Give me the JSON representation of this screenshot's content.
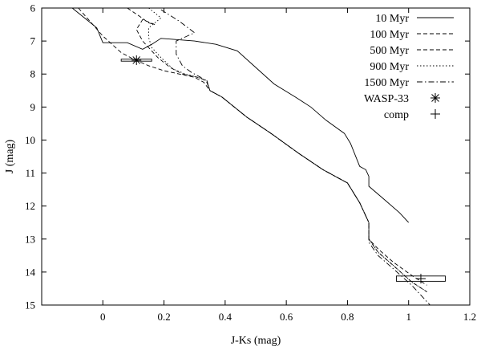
{
  "chart_data": {
    "type": "line",
    "xlabel": "J-Ks (mag)",
    "ylabel": "J (mag)",
    "xlim": [
      -0.2,
      1.2
    ],
    "ylim": [
      15,
      6
    ],
    "y_inverted": true,
    "grid": false,
    "legend_position": "top-right",
    "x_ticks": [
      "0",
      "0.2",
      "0.4",
      "0.6",
      "0.8",
      "1",
      "1.2"
    ],
    "y_ticks": [
      "6",
      "7",
      "8",
      "9",
      "10",
      "11",
      "12",
      "13",
      "14",
      "15"
    ],
    "series": [
      {
        "name": "10 Myr",
        "style": "solid",
        "x": [
          -0.1,
          -0.02,
          0.0,
          0.08,
          0.13,
          0.16,
          0.19,
          0.3,
          0.37,
          0.44,
          0.5,
          0.56,
          0.63,
          0.68,
          0.73,
          0.79,
          0.81,
          0.84,
          0.86,
          0.87,
          0.87,
          0.92,
          0.97,
          1.0
        ],
        "y": [
          6.0,
          6.6,
          7.05,
          7.05,
          7.25,
          7.1,
          6.92,
          7.0,
          7.1,
          7.3,
          7.8,
          8.3,
          8.7,
          9.0,
          9.4,
          9.8,
          10.1,
          10.8,
          10.9,
          11.1,
          11.4,
          11.8,
          12.2,
          12.5
        ]
      },
      {
        "name": "100 Myr",
        "style": "dashed",
        "x": [
          -0.08,
          0.0,
          0.06,
          0.1,
          0.15,
          0.2,
          0.25,
          0.3,
          0.33,
          0.35,
          0.39,
          0.47,
          0.55,
          0.64,
          0.72,
          0.8,
          0.84,
          0.86,
          0.87,
          0.87,
          0.9,
          0.95,
          1.01,
          1.06
        ],
        "y": [
          6.0,
          6.85,
          7.35,
          7.55,
          7.75,
          7.9,
          8.0,
          8.1,
          8.25,
          8.5,
          8.7,
          9.3,
          9.8,
          10.4,
          10.9,
          11.3,
          11.9,
          12.3,
          12.5,
          13.0,
          13.3,
          13.7,
          14.1,
          14.4
        ]
      },
      {
        "name": "500 Myr",
        "style": "dashed",
        "x": [
          0.08,
          0.12,
          0.15,
          0.17,
          0.13,
          0.11,
          0.13,
          0.18,
          0.22,
          0.26,
          0.31,
          0.34,
          0.35,
          0.39,
          0.47,
          0.55,
          0.64,
          0.72,
          0.8,
          0.84,
          0.86,
          0.87,
          0.87,
          0.9,
          0.95,
          1.01,
          1.06
        ],
        "y": [
          6.0,
          6.25,
          6.45,
          6.5,
          6.35,
          6.65,
          7.0,
          7.5,
          7.8,
          8.0,
          8.1,
          8.2,
          8.5,
          8.7,
          9.3,
          9.8,
          10.4,
          10.9,
          11.3,
          11.9,
          12.3,
          12.5,
          13.0,
          13.4,
          13.8,
          14.3,
          14.6
        ]
      },
      {
        "name": "900 Myr",
        "style": "dotted",
        "x": [
          0.15,
          0.19,
          0.17,
          0.15,
          0.15,
          0.16,
          0.19,
          0.23,
          0.27,
          0.31,
          0.34,
          0.35,
          0.39,
          0.47,
          0.55,
          0.64,
          0.72,
          0.8,
          0.84,
          0.86,
          0.87,
          0.87,
          0.9,
          0.95,
          1.01,
          1.06
        ],
        "y": [
          6.0,
          6.3,
          6.45,
          6.6,
          6.9,
          7.2,
          7.5,
          7.85,
          8.0,
          8.1,
          8.2,
          8.5,
          8.7,
          9.3,
          9.8,
          10.4,
          10.9,
          11.3,
          11.9,
          12.3,
          12.5,
          13.0,
          13.4,
          13.8,
          14.3,
          14.6
        ]
      },
      {
        "name": "1500 Myr",
        "style": "dashdot",
        "x": [
          0.19,
          0.25,
          0.3,
          0.24,
          0.24,
          0.26,
          0.29,
          0.32,
          0.34,
          0.35,
          0.39,
          0.47,
          0.55,
          0.64,
          0.72,
          0.8,
          0.84,
          0.86,
          0.87,
          0.87,
          0.9,
          0.95,
          1.01,
          1.07
        ],
        "y": [
          6.05,
          6.4,
          6.75,
          7.0,
          7.4,
          7.75,
          7.95,
          8.1,
          8.25,
          8.5,
          8.7,
          9.3,
          9.8,
          10.4,
          10.9,
          11.3,
          11.9,
          12.3,
          12.5,
          13.1,
          13.5,
          13.9,
          14.4,
          15.0
        ]
      }
    ],
    "points": [
      {
        "name": "WASP-33",
        "marker": "asterisk",
        "x": 0.11,
        "y": 7.58,
        "xerr": 0.05,
        "yerr": 0.03
      },
      {
        "name": "comp",
        "marker": "plus",
        "x": 1.04,
        "y": 14.2,
        "xerr": 0.08,
        "yerr": 0.08
      }
    ]
  }
}
